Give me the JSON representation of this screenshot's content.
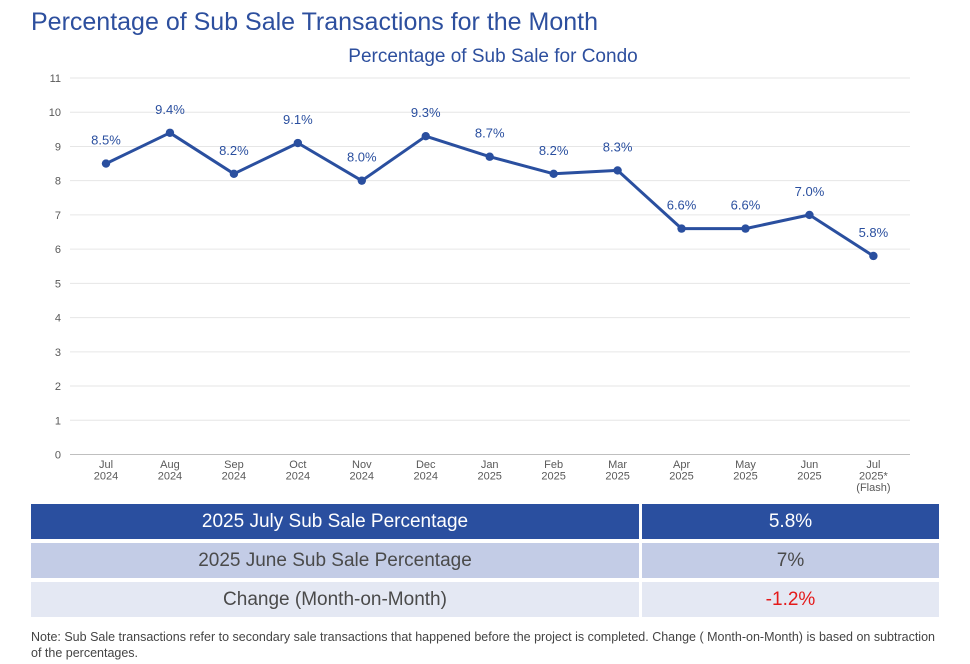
{
  "page_title": "Percentage of Sub Sale Transactions for the Month",
  "colors": {
    "title": "#2d4f9e",
    "series": "#2a4f9f",
    "grid": "#e6e6e6",
    "tick": "#595959",
    "negative": "#e41a1a"
  },
  "chart_data": {
    "type": "line",
    "title": "Percentage of Sub Sale for Condo",
    "xlabel": "",
    "ylabel": "",
    "ylim": [
      0,
      11
    ],
    "yticks": [
      0,
      1,
      2,
      3,
      4,
      5,
      6,
      7,
      8,
      9,
      10,
      11
    ],
    "grid": true,
    "categories": [
      [
        "Jul",
        "2024"
      ],
      [
        "Aug",
        "2024"
      ],
      [
        "Sep",
        "2024"
      ],
      [
        "Oct",
        "2024"
      ],
      [
        "Nov",
        "2024"
      ],
      [
        "Dec",
        "2024"
      ],
      [
        "Jan",
        "2025"
      ],
      [
        "Feb",
        "2025"
      ],
      [
        "Mar",
        "2025"
      ],
      [
        "Apr",
        "2025"
      ],
      [
        "May",
        "2025"
      ],
      [
        "Jun",
        "2025"
      ],
      [
        "Jul",
        "2025*",
        "(Flash)"
      ]
    ],
    "series": [
      {
        "name": "Percentage of Sub Sale for Condo",
        "values": [
          8.5,
          9.4,
          8.2,
          9.1,
          8.0,
          9.3,
          8.7,
          8.2,
          8.3,
          6.6,
          6.6,
          7.0,
          5.8
        ],
        "data_labels": [
          "8.5%",
          "9.4%",
          "8.2%",
          "9.1%",
          "8.0%",
          "9.3%",
          "8.7%",
          "8.2%",
          "8.3%",
          "6.6%",
          "6.6%",
          "7.0%",
          "5.8%"
        ]
      }
    ]
  },
  "summary_table": {
    "rows": [
      {
        "label": "2025 July Sub Sale Percentage",
        "value": "5.8%"
      },
      {
        "label": "2025 June Sub Sale Percentage",
        "value": "7%"
      },
      {
        "label": "Change (Month-on-Month)",
        "value": "-1.2%"
      }
    ]
  },
  "note": "Note: Sub Sale transactions refer to secondary sale transactions that happened before the project is completed. Change ( Month-on-Month) is based on subtraction of the percentages."
}
